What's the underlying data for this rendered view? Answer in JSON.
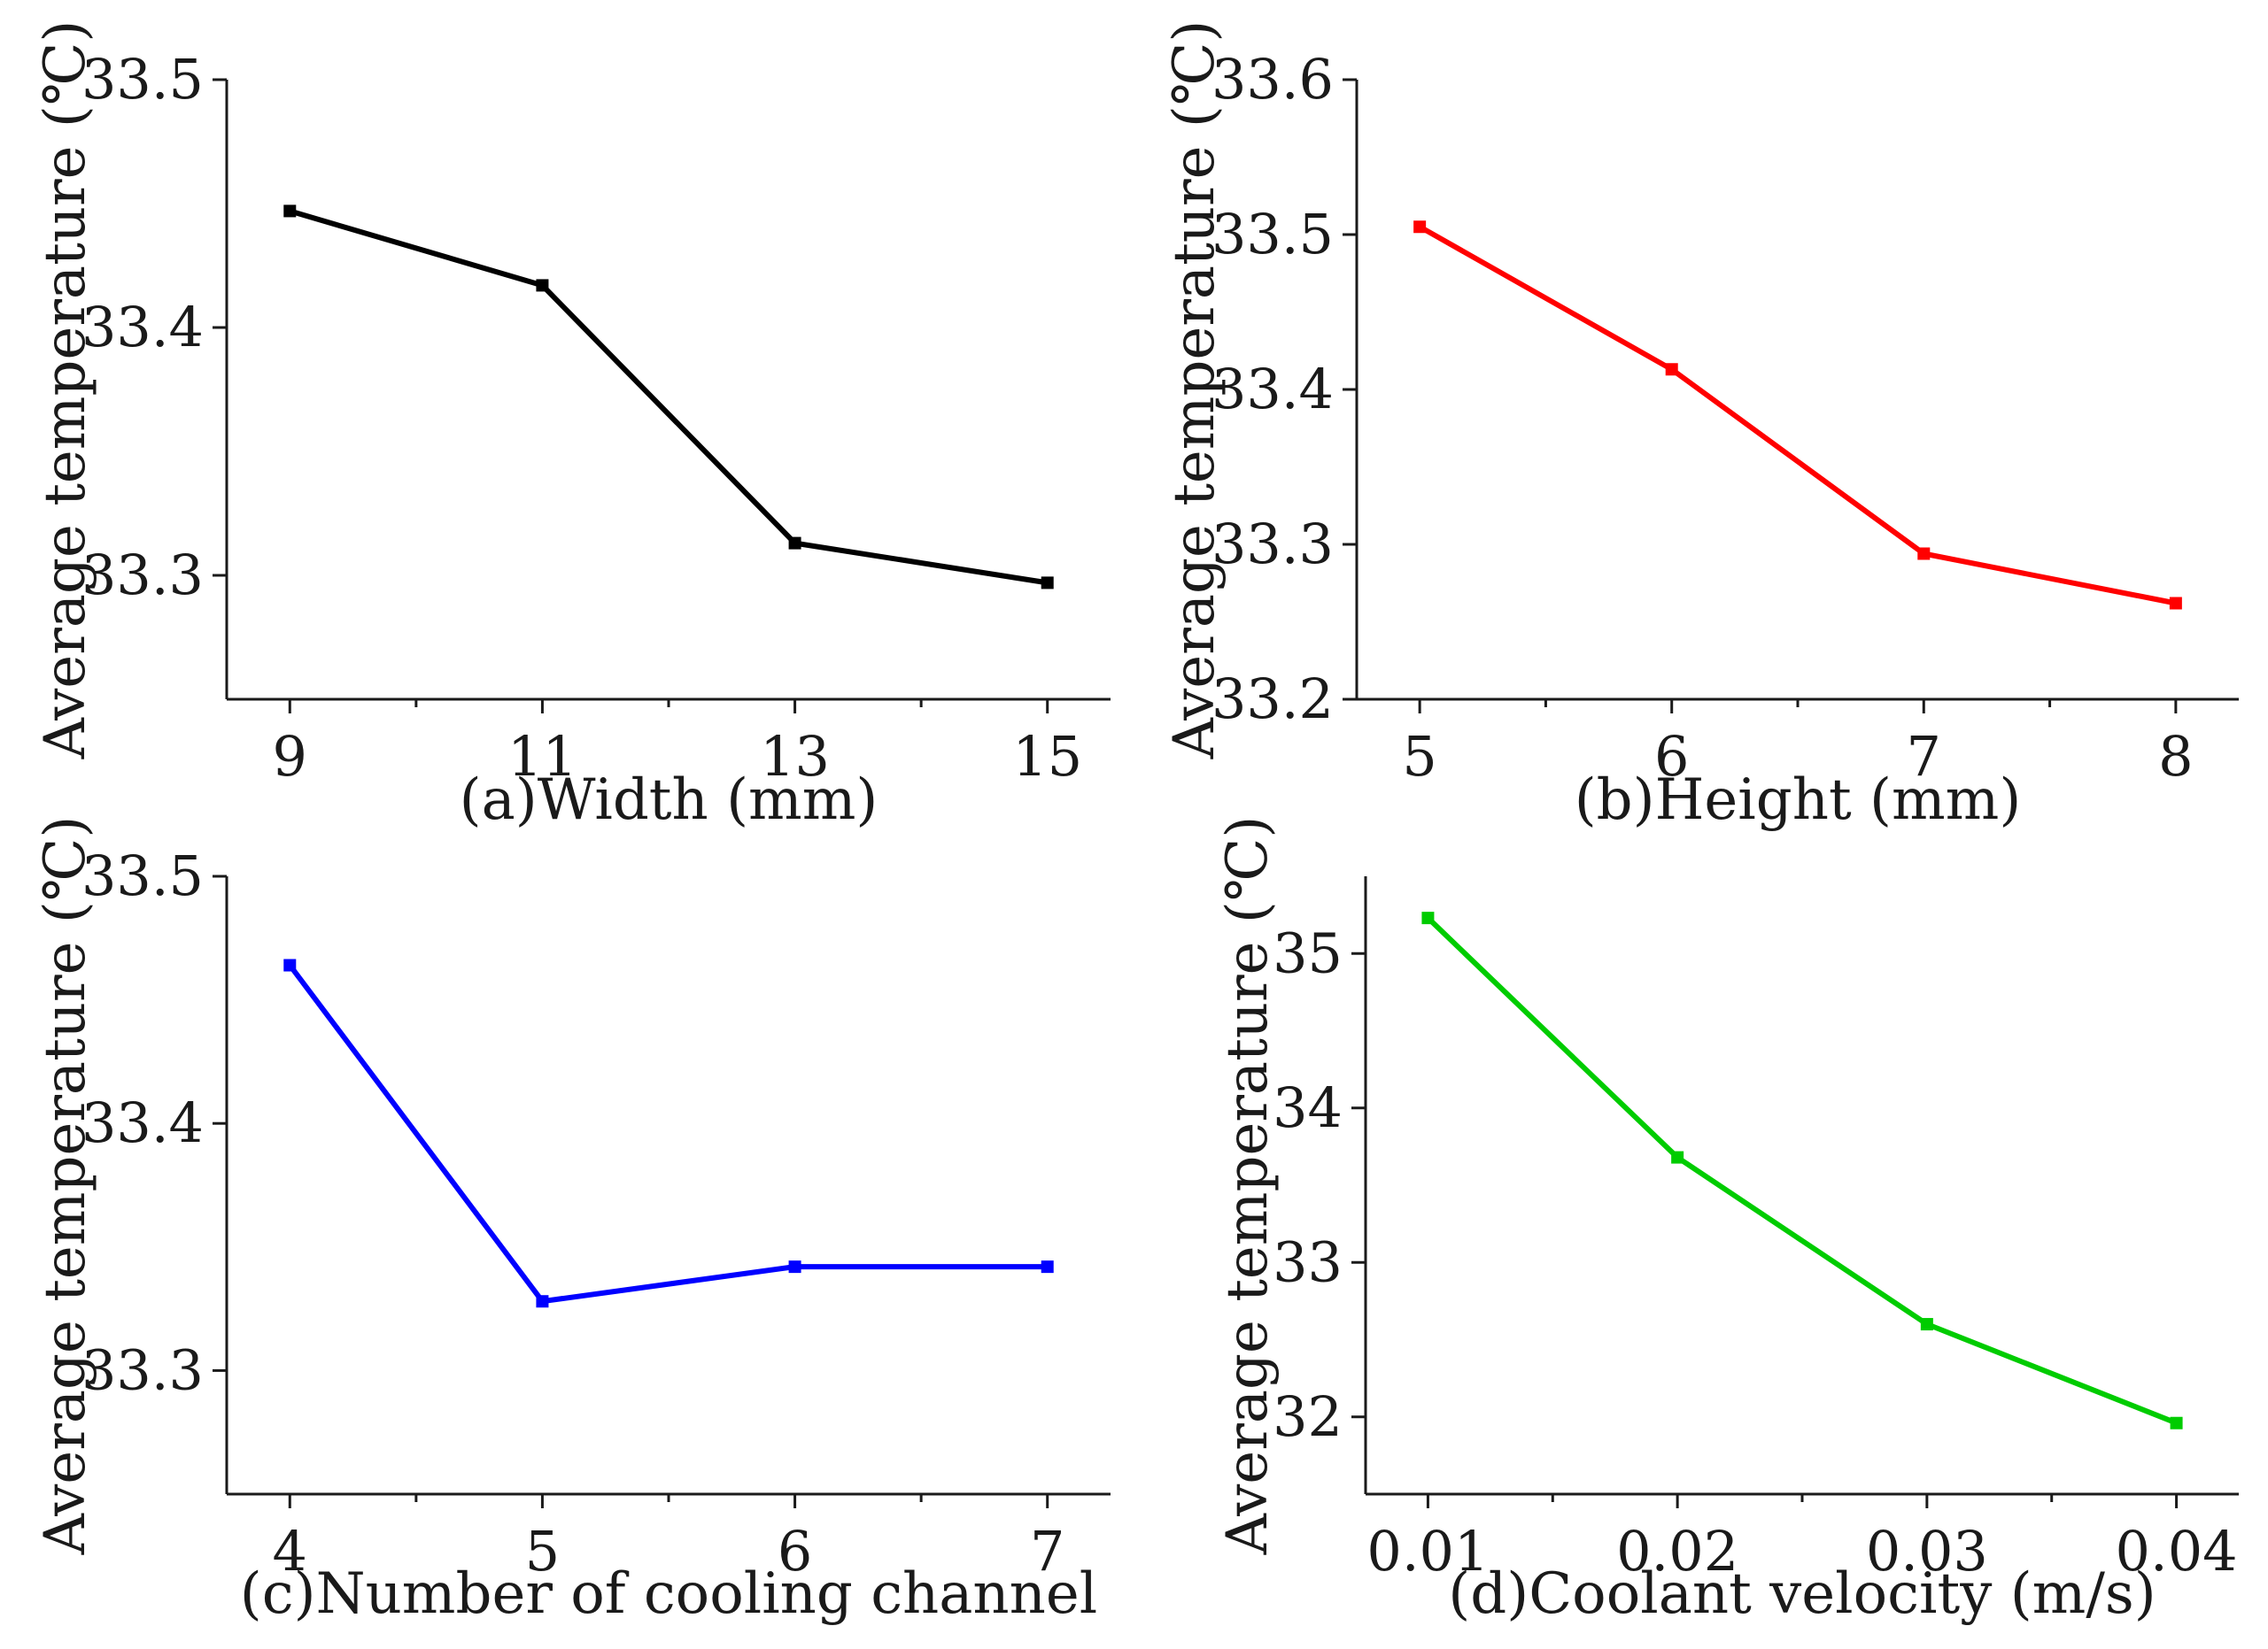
{
  "chart_data": [
    {
      "type": "line",
      "title": "",
      "xlabel": "(a)Width (mm)",
      "ylabel": "Average temperature (℃)",
      "color": "#000000",
      "x": [
        9,
        11,
        13,
        15
      ],
      "values": [
        33.447,
        33.417,
        33.313,
        33.297
      ],
      "xlim": [
        8.5,
        15.5
      ],
      "ylim": [
        33.25,
        33.5
      ],
      "xticks": [
        9,
        11,
        13,
        15
      ],
      "xtick_labels": [
        "9",
        "11",
        "13",
        "15"
      ],
      "xminor": [
        10,
        12,
        14
      ],
      "yticks": [
        33.3,
        33.4,
        33.5
      ],
      "ytick_labels": [
        "33.3",
        "33.4",
        "33.5"
      ],
      "grid": false
    },
    {
      "type": "line",
      "title": "",
      "xlabel": "(b)Height (mm)",
      "ylabel": "Average temperature (℃)",
      "color": "#ff0000",
      "x": [
        5,
        6,
        7,
        8
      ],
      "values": [
        33.505,
        33.413,
        33.294,
        33.262
      ],
      "xlim": [
        4.75,
        8.25
      ],
      "ylim": [
        33.2,
        33.6
      ],
      "xticks": [
        5,
        6,
        7,
        8
      ],
      "xtick_labels": [
        "5",
        "6",
        "7",
        "8"
      ],
      "xminor": [
        5.5,
        6.5,
        7.5
      ],
      "yticks": [
        33.2,
        33.3,
        33.4,
        33.5,
        33.6
      ],
      "ytick_labels": [
        "33.2",
        "33.3",
        "33.4",
        "33.5",
        "33.6"
      ],
      "grid": false
    },
    {
      "type": "line",
      "title": "",
      "xlabel": "(c)Number of cooling channel",
      "ylabel": "Average temperature (℃)",
      "color": "#0000ff",
      "x": [
        4,
        5,
        6,
        7
      ],
      "values": [
        33.464,
        33.328,
        33.342,
        33.342
      ],
      "xlim": [
        3.75,
        7.25
      ],
      "ylim": [
        33.25,
        33.5
      ],
      "xticks": [
        4,
        5,
        6,
        7
      ],
      "xtick_labels": [
        "4",
        "5",
        "6",
        "7"
      ],
      "xminor": [
        4.5,
        5.5,
        6.5
      ],
      "yticks": [
        33.3,
        33.4,
        33.5
      ],
      "ytick_labels": [
        "33.3",
        "33.4",
        "33.5"
      ],
      "grid": false
    },
    {
      "type": "line",
      "title": "",
      "xlabel": "(d)Coolant velocity (m/s)",
      "ylabel": "Average temperature (℃)",
      "color": "#00cc00",
      "x": [
        0.01,
        0.02,
        0.03,
        0.04
      ],
      "values": [
        35.23,
        33.68,
        32.6,
        31.96
      ],
      "xlim": [
        0.0075,
        0.0425
      ],
      "ylim": [
        31.5,
        35.5
      ],
      "xticks": [
        0.01,
        0.02,
        0.03,
        0.04
      ],
      "xtick_labels": [
        "0.01",
        "0.02",
        "0.03",
        "0.04"
      ],
      "xminor": [
        0.015,
        0.025,
        0.035
      ],
      "yticks": [
        32,
        33,
        34,
        35
      ],
      "ytick_labels": [
        "32",
        "33",
        "34",
        "35"
      ],
      "grid": false
    }
  ]
}
